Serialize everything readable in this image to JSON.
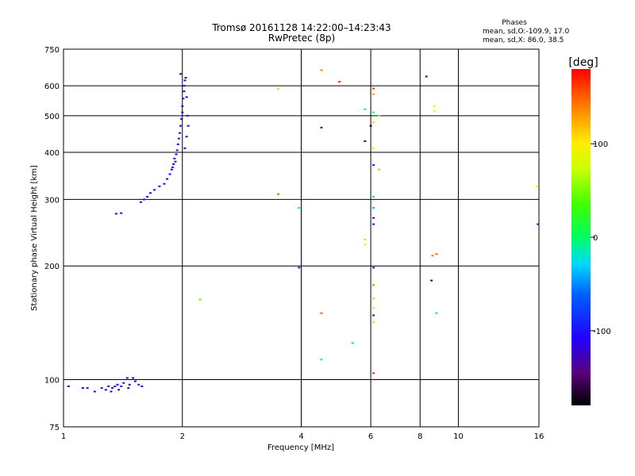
{
  "header": {
    "title": "Tromsø 20161128 14:22:00–14:23:43",
    "subtitle": "RwPretec (8p)"
  },
  "stats": {
    "heading": "Phases",
    "line1": "mean, sd,O:-109.9, 17.0",
    "line2": "mean, sd,X: 86.0, 38.5"
  },
  "chart_data": {
    "type": "scatter",
    "title": "Tromsø 20161128 14:22:00–14:23:43",
    "subtitle": "RwPretec (8p)",
    "xlabel": "Frequency [MHz]",
    "ylabel": "Stationary phase Virtual Height [km]",
    "x_scale": "log",
    "y_scale": "log",
    "xlim": [
      1,
      16
    ],
    "ylim": [
      75,
      750
    ],
    "x_ticks": [
      1,
      2,
      4,
      6,
      8,
      10,
      16
    ],
    "x_tick_labels": [
      "1",
      "2",
      "4",
      "6",
      "8",
      "10",
      "16"
    ],
    "y_ticks": [
      75,
      100,
      200,
      300,
      400,
      500,
      600,
      750
    ],
    "y_tick_labels": [
      "75",
      "100",
      "200",
      "300",
      "400",
      "500",
      "600",
      "750"
    ],
    "grid": true,
    "colorbar": {
      "label": "[deg]",
      "range": [
        -180,
        180
      ],
      "ticks": [
        100,
        0,
        -100
      ],
      "tick_labels": [
        "100",
        "0",
        "-100"
      ]
    },
    "series": [
      {
        "points": [
          {
            "x": 1.03,
            "y": 96,
            "phase": -120
          },
          {
            "x": 1.12,
            "y": 95,
            "phase": -110
          },
          {
            "x": 1.15,
            "y": 95,
            "phase": -115
          },
          {
            "x": 1.2,
            "y": 93,
            "phase": -125
          },
          {
            "x": 1.25,
            "y": 95,
            "phase": -100
          },
          {
            "x": 1.28,
            "y": 94,
            "phase": -130
          },
          {
            "x": 1.3,
            "y": 96,
            "phase": -110
          },
          {
            "x": 1.33,
            "y": 95,
            "phase": -120
          },
          {
            "x": 1.35,
            "y": 96,
            "phase": -140
          },
          {
            "x": 1.37,
            "y": 97,
            "phase": -110
          },
          {
            "x": 1.4,
            "y": 96,
            "phase": -100
          },
          {
            "x": 1.42,
            "y": 98,
            "phase": -120
          },
          {
            "x": 1.45,
            "y": 101,
            "phase": -110
          },
          {
            "x": 1.47,
            "y": 97,
            "phase": -130
          },
          {
            "x": 1.5,
            "y": 101,
            "phase": -115
          },
          {
            "x": 1.52,
            "y": 99,
            "phase": -105
          },
          {
            "x": 1.55,
            "y": 97,
            "phase": -120
          },
          {
            "x": 1.58,
            "y": 96,
            "phase": -110
          },
          {
            "x": 1.32,
            "y": 93,
            "phase": -120
          },
          {
            "x": 1.38,
            "y": 94,
            "phase": -115
          },
          {
            "x": 1.46,
            "y": 95,
            "phase": -125
          },
          {
            "x": 1.36,
            "y": 275,
            "phase": -120
          },
          {
            "x": 1.4,
            "y": 276,
            "phase": -110
          },
          {
            "x": 1.57,
            "y": 295,
            "phase": -120
          },
          {
            "x": 1.6,
            "y": 300,
            "phase": -115
          },
          {
            "x": 1.63,
            "y": 305,
            "phase": -110
          },
          {
            "x": 1.66,
            "y": 312,
            "phase": -125
          },
          {
            "x": 1.7,
            "y": 318,
            "phase": -120
          },
          {
            "x": 1.75,
            "y": 325,
            "phase": -110
          },
          {
            "x": 1.8,
            "y": 330,
            "phase": -115
          },
          {
            "x": 1.83,
            "y": 340,
            "phase": -120
          },
          {
            "x": 1.86,
            "y": 350,
            "phase": -110
          },
          {
            "x": 1.88,
            "y": 360,
            "phase": -125
          },
          {
            "x": 1.9,
            "y": 372,
            "phase": -120
          },
          {
            "x": 1.91,
            "y": 385,
            "phase": -110
          },
          {
            "x": 1.93,
            "y": 395,
            "phase": -115
          },
          {
            "x": 1.94,
            "y": 405,
            "phase": -120
          },
          {
            "x": 1.95,
            "y": 420,
            "phase": -110
          },
          {
            "x": 1.96,
            "y": 435,
            "phase": -125
          },
          {
            "x": 1.97,
            "y": 450,
            "phase": -120
          },
          {
            "x": 1.98,
            "y": 470,
            "phase": -110
          },
          {
            "x": 1.99,
            "y": 490,
            "phase": -115
          },
          {
            "x": 2.0,
            "y": 510,
            "phase": -120
          },
          {
            "x": 2.0,
            "y": 530,
            "phase": -110
          },
          {
            "x": 2.01,
            "y": 555,
            "phase": -125
          },
          {
            "x": 2.02,
            "y": 580,
            "phase": -120
          },
          {
            "x": 2.02,
            "y": 600,
            "phase": -110
          },
          {
            "x": 2.03,
            "y": 620,
            "phase": -115
          },
          {
            "x": 1.98,
            "y": 645,
            "phase": -120
          },
          {
            "x": 2.04,
            "y": 630,
            "phase": -130
          },
          {
            "x": 2.05,
            "y": 560,
            "phase": -110
          },
          {
            "x": 2.06,
            "y": 500,
            "phase": -115
          },
          {
            "x": 2.07,
            "y": 470,
            "phase": -120
          },
          {
            "x": 2.05,
            "y": 440,
            "phase": -110
          },
          {
            "x": 2.03,
            "y": 410,
            "phase": -125
          },
          {
            "x": 1.92,
            "y": 378,
            "phase": -118
          },
          {
            "x": 1.89,
            "y": 365,
            "phase": -112
          },
          {
            "x": 2.22,
            "y": 163,
            "phase": 40
          },
          {
            "x": 3.5,
            "y": 588,
            "phase": 110
          },
          {
            "x": 3.5,
            "y": 310,
            "phase": 150
          },
          {
            "x": 3.95,
            "y": 198,
            "phase": -110
          },
          {
            "x": 3.95,
            "y": 285,
            "phase": -20
          },
          {
            "x": 4.5,
            "y": 660,
            "phase": 140
          },
          {
            "x": 4.5,
            "y": 465,
            "phase": -120
          },
          {
            "x": 4.5,
            "y": 150,
            "phase": 150
          },
          {
            "x": 4.5,
            "y": 113,
            "phase": -10
          },
          {
            "x": 5.0,
            "y": 615,
            "phase": 170
          },
          {
            "x": 5.4,
            "y": 125,
            "phase": -20
          },
          {
            "x": 5.8,
            "y": 520,
            "phase": -10
          },
          {
            "x": 5.8,
            "y": 428,
            "phase": -120
          },
          {
            "x": 5.8,
            "y": 235,
            "phase": 110
          },
          {
            "x": 5.8,
            "y": 228,
            "phase": 100
          },
          {
            "x": 6.0,
            "y": 470,
            "phase": -170
          },
          {
            "x": 6.1,
            "y": 590,
            "phase": 160
          },
          {
            "x": 6.1,
            "y": 570,
            "phase": 130
          },
          {
            "x": 6.1,
            "y": 510,
            "phase": -10
          },
          {
            "x": 6.1,
            "y": 480,
            "phase": 110
          },
          {
            "x": 6.1,
            "y": 410,
            "phase": 80
          },
          {
            "x": 6.1,
            "y": 370,
            "phase": -90
          },
          {
            "x": 6.1,
            "y": 305,
            "phase": -10
          },
          {
            "x": 6.1,
            "y": 285,
            "phase": -40
          },
          {
            "x": 6.1,
            "y": 268,
            "phase": -110
          },
          {
            "x": 6.1,
            "y": 258,
            "phase": -100
          },
          {
            "x": 6.1,
            "y": 198,
            "phase": -110
          },
          {
            "x": 6.1,
            "y": 178,
            "phase": 140
          },
          {
            "x": 6.1,
            "y": 164,
            "phase": 60
          },
          {
            "x": 6.1,
            "y": 155,
            "phase": 90
          },
          {
            "x": 6.1,
            "y": 148,
            "phase": -140
          },
          {
            "x": 6.1,
            "y": 142,
            "phase": 110
          },
          {
            "x": 6.1,
            "y": 104,
            "phase": 170
          },
          {
            "x": 6.3,
            "y": 500,
            "phase": 50
          },
          {
            "x": 6.3,
            "y": 360,
            "phase": 120
          },
          {
            "x": 8.3,
            "y": 635,
            "phase": -150
          },
          {
            "x": 8.6,
            "y": 213,
            "phase": 140
          },
          {
            "x": 8.55,
            "y": 183,
            "phase": -160
          },
          {
            "x": 8.7,
            "y": 530,
            "phase": 100
          },
          {
            "x": 8.7,
            "y": 515,
            "phase": 90
          },
          {
            "x": 8.8,
            "y": 215,
            "phase": 150
          },
          {
            "x": 8.8,
            "y": 150,
            "phase": -30
          },
          {
            "x": 15.8,
            "y": 325,
            "phase": 100
          },
          {
            "x": 15.9,
            "y": 258,
            "phase": -90
          }
        ]
      }
    ]
  }
}
